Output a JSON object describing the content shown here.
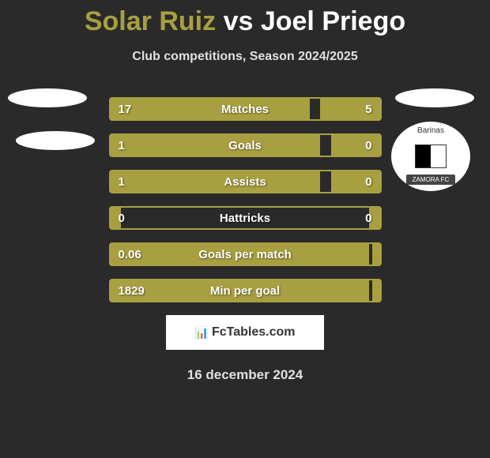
{
  "header": {
    "player1": "Solar Ruiz",
    "vs": "vs",
    "player2": "Joel Priego",
    "subtitle": "Club competitions, Season 2024/2025"
  },
  "colors": {
    "accent": "#a8a040",
    "background": "#2a2a2a",
    "text": "#ffffff",
    "subtext": "#e0e0e0",
    "logo_bg": "#ffffff"
  },
  "badge": {
    "top_text": "Barinas",
    "bottom_text": "ZAMORA FC"
  },
  "stats": [
    {
      "label": "Matches",
      "left_val": "17",
      "right_val": "5",
      "left_pct": 74,
      "right_pct": 22
    },
    {
      "label": "Goals",
      "left_val": "1",
      "right_val": "0",
      "left_pct": 78,
      "right_pct": 18
    },
    {
      "label": "Assists",
      "left_val": "1",
      "right_val": "0",
      "left_pct": 78,
      "right_pct": 18
    },
    {
      "label": "Hattricks",
      "left_val": "0",
      "right_val": "0",
      "left_pct": 4,
      "right_pct": 4
    },
    {
      "label": "Goals per match",
      "left_val": "0.06",
      "right_val": "",
      "left_pct": 96,
      "right_pct": 0
    },
    {
      "label": "Min per goal",
      "left_val": "1829",
      "right_val": "",
      "left_pct": 96,
      "right_pct": 0
    }
  ],
  "footer": {
    "brand_icon": "📊",
    "brand": "FcTables.com",
    "date": "16 december 2024"
  }
}
